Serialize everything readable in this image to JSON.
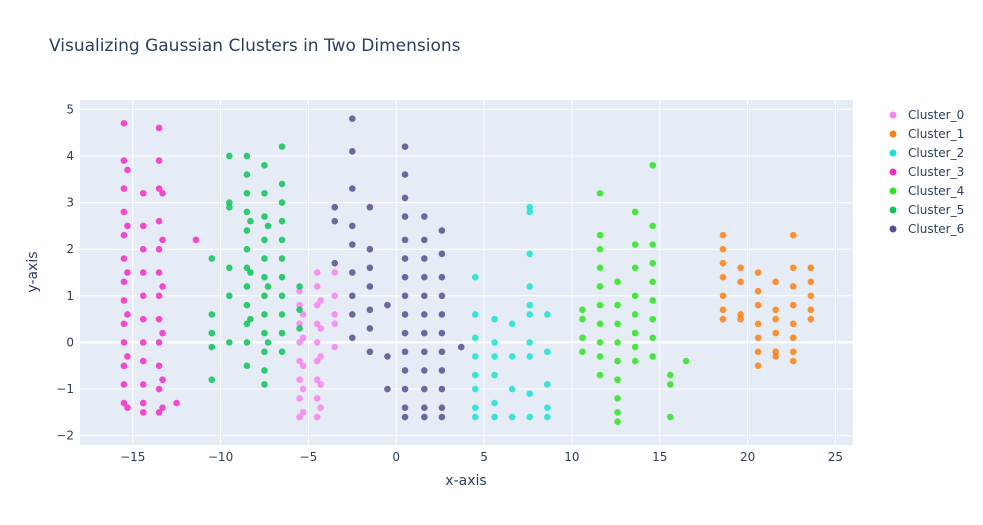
{
  "chart_data": {
    "type": "scatter",
    "title": "Visualizing Gaussian Clusters in Two Dimensions",
    "xlabel": "x-axis",
    "ylabel": "y-axis",
    "xlim": [
      -18,
      26
    ],
    "ylim": [
      -2.2,
      5.2
    ],
    "xticks": [
      -15,
      -10,
      -5,
      0,
      5,
      10,
      15,
      20,
      25
    ],
    "yticks": [
      -2,
      -1,
      0,
      1,
      2,
      3,
      4,
      5
    ],
    "grid": true,
    "legend_position": "right",
    "colors": {
      "plot_bg": "#e5ecf6",
      "grid": "#ffffff",
      "text": "#2a3f5f"
    },
    "series": [
      {
        "name": "Cluster_0",
        "color": "#f785ef",
        "points": [
          [
            -5.5,
            -1.6
          ],
          [
            -5.5,
            -1.2
          ],
          [
            -5.5,
            -0.8
          ],
          [
            -5.5,
            -0.4
          ],
          [
            -5.5,
            0.0
          ],
          [
            -5.5,
            0.4
          ],
          [
            -5.5,
            0.8
          ],
          [
            -5.5,
            1.1
          ],
          [
            -5.3,
            -1.5
          ],
          [
            -5.3,
            -1.0
          ],
          [
            -5.3,
            -0.5
          ],
          [
            -5.3,
            0.1
          ],
          [
            -5.3,
            0.6
          ],
          [
            -4.5,
            -1.6
          ],
          [
            -4.5,
            -1.2
          ],
          [
            -4.5,
            -0.8
          ],
          [
            -4.5,
            -0.4
          ],
          [
            -4.5,
            0.0
          ],
          [
            -4.5,
            0.4
          ],
          [
            -4.5,
            0.8
          ],
          [
            -4.5,
            1.2
          ],
          [
            -4.5,
            1.5
          ],
          [
            -4.3,
            -1.4
          ],
          [
            -4.3,
            -0.9
          ],
          [
            -4.3,
            -0.3
          ],
          [
            -4.3,
            0.3
          ],
          [
            -4.3,
            0.9
          ],
          [
            -3.5,
            1.5
          ],
          [
            -3.5,
            1.0
          ],
          [
            -3.5,
            0.6
          ],
          [
            -3.5,
            0.4
          ],
          [
            -3.5,
            -0.1
          ]
        ]
      },
      {
        "name": "Cluster_1",
        "color": "#ff7f0e",
        "points": [
          [
            18.6,
            2.3
          ],
          [
            18.6,
            2.0
          ],
          [
            18.6,
            1.7
          ],
          [
            18.6,
            1.4
          ],
          [
            18.6,
            1.0
          ],
          [
            18.6,
            0.7
          ],
          [
            18.6,
            0.5
          ],
          [
            19.6,
            1.6
          ],
          [
            19.6,
            1.3
          ],
          [
            19.6,
            0.6
          ],
          [
            19.6,
            0.5
          ],
          [
            20.6,
            1.5
          ],
          [
            20.6,
            1.1
          ],
          [
            20.6,
            0.8
          ],
          [
            20.6,
            0.4
          ],
          [
            20.6,
            0.1
          ],
          [
            20.6,
            -0.2
          ],
          [
            20.6,
            -0.5
          ],
          [
            21.6,
            1.3
          ],
          [
            21.6,
            0.7
          ],
          [
            21.6,
            0.5
          ],
          [
            21.6,
            0.2
          ],
          [
            21.6,
            -0.2
          ],
          [
            21.6,
            -0.3
          ],
          [
            22.6,
            2.3
          ],
          [
            22.6,
            1.6
          ],
          [
            22.6,
            1.2
          ],
          [
            22.6,
            0.8
          ],
          [
            22.6,
            0.4
          ],
          [
            22.6,
            0.1
          ],
          [
            22.6,
            -0.2
          ],
          [
            22.6,
            -0.4
          ],
          [
            23.6,
            1.6
          ],
          [
            23.6,
            1.3
          ],
          [
            23.6,
            1.0
          ],
          [
            23.6,
            0.7
          ],
          [
            23.6,
            0.5
          ]
        ]
      },
      {
        "name": "Cluster_2",
        "color": "#1be2d0",
        "points": [
          [
            4.5,
            1.4
          ],
          [
            4.5,
            0.6
          ],
          [
            4.5,
            0.1
          ],
          [
            4.5,
            -0.3
          ],
          [
            4.5,
            -0.7
          ],
          [
            4.5,
            -1.0
          ],
          [
            4.5,
            -1.4
          ],
          [
            4.5,
            -1.6
          ],
          [
            5.6,
            0.5
          ],
          [
            5.6,
            0.0
          ],
          [
            5.6,
            -0.3
          ],
          [
            5.6,
            -0.7
          ],
          [
            5.6,
            -1.3
          ],
          [
            5.6,
            -1.6
          ],
          [
            6.6,
            0.4
          ],
          [
            6.6,
            -0.3
          ],
          [
            6.6,
            -1.0
          ],
          [
            6.6,
            -1.6
          ],
          [
            7.6,
            2.9
          ],
          [
            7.6,
            2.8
          ],
          [
            7.6,
            1.9
          ],
          [
            7.6,
            1.2
          ],
          [
            7.6,
            0.8
          ],
          [
            7.6,
            0.6
          ],
          [
            7.6,
            0.0
          ],
          [
            7.6,
            -0.3
          ],
          [
            7.6,
            -1.1
          ],
          [
            7.6,
            -1.6
          ],
          [
            8.6,
            0.6
          ],
          [
            8.6,
            -0.2
          ],
          [
            8.6,
            -0.9
          ],
          [
            8.6,
            -1.4
          ],
          [
            8.6,
            -1.6
          ]
        ]
      },
      {
        "name": "Cluster_3",
        "color": "#f32bc7",
        "points": [
          [
            -15.5,
            4.7
          ],
          [
            -15.5,
            3.9
          ],
          [
            -15.5,
            3.3
          ],
          [
            -15.5,
            2.8
          ],
          [
            -15.5,
            2.3
          ],
          [
            -15.5,
            1.8
          ],
          [
            -15.5,
            1.3
          ],
          [
            -15.5,
            0.9
          ],
          [
            -15.5,
            0.4
          ],
          [
            -15.5,
            0.0
          ],
          [
            -15.5,
            -0.5
          ],
          [
            -15.5,
            -0.9
          ],
          [
            -15.5,
            -1.3
          ],
          [
            -15.3,
            3.7
          ],
          [
            -15.3,
            2.5
          ],
          [
            -15.3,
            1.5
          ],
          [
            -15.3,
            0.6
          ],
          [
            -15.3,
            -0.3
          ],
          [
            -15.3,
            -1.4
          ],
          [
            -14.4,
            3.2
          ],
          [
            -14.4,
            2.5
          ],
          [
            -14.4,
            2.0
          ],
          [
            -14.4,
            1.5
          ],
          [
            -14.4,
            1.0
          ],
          [
            -14.4,
            0.5
          ],
          [
            -14.4,
            0.0
          ],
          [
            -14.4,
            -0.4
          ],
          [
            -14.4,
            -0.9
          ],
          [
            -14.4,
            -1.3
          ],
          [
            -14.4,
            -1.5
          ],
          [
            -13.5,
            4.6
          ],
          [
            -13.5,
            3.9
          ],
          [
            -13.5,
            3.3
          ],
          [
            -13.5,
            2.6
          ],
          [
            -13.5,
            2.0
          ],
          [
            -13.5,
            1.5
          ],
          [
            -13.5,
            1.0
          ],
          [
            -13.5,
            0.5
          ],
          [
            -13.5,
            0.0
          ],
          [
            -13.5,
            -0.5
          ],
          [
            -13.5,
            -1.0
          ],
          [
            -13.5,
            -1.5
          ],
          [
            -13.3,
            3.2
          ],
          [
            -13.3,
            2.2
          ],
          [
            -13.3,
            1.2
          ],
          [
            -13.3,
            0.2
          ],
          [
            -13.3,
            -0.8
          ],
          [
            -13.3,
            -1.4
          ],
          [
            -12.5,
            -1.3
          ],
          [
            -11.4,
            2.2
          ]
        ]
      },
      {
        "name": "Cluster_4",
        "color": "#2ee420",
        "points": [
          [
            10.6,
            0.7
          ],
          [
            10.6,
            0.5
          ],
          [
            10.6,
            0.1
          ],
          [
            10.6,
            -0.2
          ],
          [
            11.6,
            3.2
          ],
          [
            11.6,
            2.3
          ],
          [
            11.6,
            2.0
          ],
          [
            11.6,
            1.6
          ],
          [
            11.6,
            1.2
          ],
          [
            11.6,
            0.8
          ],
          [
            11.6,
            0.4
          ],
          [
            11.6,
            0.0
          ],
          [
            11.6,
            -0.3
          ],
          [
            11.6,
            -0.7
          ],
          [
            12.6,
            1.3
          ],
          [
            12.6,
            0.8
          ],
          [
            12.6,
            0.4
          ],
          [
            12.6,
            0.0
          ],
          [
            12.6,
            -0.4
          ],
          [
            12.6,
            -0.8
          ],
          [
            12.6,
            -1.2
          ],
          [
            12.6,
            -1.5
          ],
          [
            12.6,
            -1.7
          ],
          [
            13.6,
            2.8
          ],
          [
            13.6,
            2.1
          ],
          [
            13.6,
            1.6
          ],
          [
            13.6,
            1.0
          ],
          [
            13.6,
            0.6
          ],
          [
            13.6,
            0.2
          ],
          [
            13.6,
            -0.1
          ],
          [
            13.6,
            -0.4
          ],
          [
            14.6,
            3.8
          ],
          [
            14.6,
            2.5
          ],
          [
            14.6,
            2.1
          ],
          [
            14.6,
            1.7
          ],
          [
            14.6,
            1.3
          ],
          [
            14.6,
            0.9
          ],
          [
            14.6,
            0.5
          ],
          [
            14.6,
            0.1
          ],
          [
            14.6,
            -0.3
          ],
          [
            15.6,
            -0.7
          ],
          [
            15.6,
            -0.9
          ],
          [
            15.6,
            -1.6
          ],
          [
            16.5,
            -0.4
          ]
        ]
      },
      {
        "name": "Cluster_5",
        "color": "#10c35a",
        "points": [
          [
            -10.5,
            1.8
          ],
          [
            -10.5,
            0.6
          ],
          [
            -10.5,
            0.2
          ],
          [
            -10.5,
            -0.1
          ],
          [
            -10.5,
            -0.8
          ],
          [
            -9.5,
            4.0
          ],
          [
            -9.5,
            3.0
          ],
          [
            -9.5,
            2.9
          ],
          [
            -9.5,
            1.6
          ],
          [
            -9.5,
            1.0
          ],
          [
            -9.5,
            0.0
          ],
          [
            -8.5,
            4.0
          ],
          [
            -8.5,
            3.6
          ],
          [
            -8.5,
            3.2
          ],
          [
            -8.5,
            2.8
          ],
          [
            -8.5,
            2.4
          ],
          [
            -8.5,
            2.0
          ],
          [
            -8.5,
            1.6
          ],
          [
            -8.5,
            1.2
          ],
          [
            -8.5,
            0.8
          ],
          [
            -8.5,
            0.4
          ],
          [
            -8.5,
            0.0
          ],
          [
            -8.5,
            -0.5
          ],
          [
            -8.3,
            2.6
          ],
          [
            -8.3,
            1.5
          ],
          [
            -8.3,
            0.5
          ],
          [
            -7.5,
            3.8
          ],
          [
            -7.5,
            3.2
          ],
          [
            -7.5,
            2.7
          ],
          [
            -7.5,
            2.2
          ],
          [
            -7.5,
            1.8
          ],
          [
            -7.5,
            1.4
          ],
          [
            -7.5,
            1.0
          ],
          [
            -7.5,
            0.6
          ],
          [
            -7.5,
            0.2
          ],
          [
            -7.5,
            -0.2
          ],
          [
            -7.5,
            -0.6
          ],
          [
            -7.5,
            -0.9
          ],
          [
            -7.3,
            2.5
          ],
          [
            -7.3,
            1.2
          ],
          [
            -7.3,
            0.0
          ],
          [
            -6.5,
            4.2
          ],
          [
            -6.5,
            3.4
          ],
          [
            -6.5,
            3.0
          ],
          [
            -6.5,
            2.6
          ],
          [
            -6.5,
            2.2
          ],
          [
            -6.5,
            1.8
          ],
          [
            -6.5,
            1.4
          ],
          [
            -6.5,
            1.0
          ],
          [
            -6.5,
            0.6
          ],
          [
            -6.5,
            0.2
          ],
          [
            -6.5,
            -0.2
          ],
          [
            -5.5,
            1.2
          ],
          [
            -5.5,
            0.7
          ],
          [
            -5.5,
            0.3
          ]
        ]
      },
      {
        "name": "Cluster_6",
        "color": "#5a4e8f",
        "points": [
          [
            -3.5,
            2.9
          ],
          [
            -3.5,
            2.6
          ],
          [
            -3.5,
            1.7
          ],
          [
            -2.5,
            4.8
          ],
          [
            -2.5,
            4.1
          ],
          [
            -2.5,
            3.3
          ],
          [
            -2.5,
            2.5
          ],
          [
            -2.5,
            2.1
          ],
          [
            -2.5,
            1.5
          ],
          [
            -2.5,
            1.0
          ],
          [
            -2.5,
            0.6
          ],
          [
            -2.5,
            0.1
          ],
          [
            -1.5,
            2.9
          ],
          [
            -1.5,
            2.0
          ],
          [
            -1.5,
            1.6
          ],
          [
            -1.5,
            1.2
          ],
          [
            -1.5,
            0.7
          ],
          [
            -1.5,
            0.3
          ],
          [
            -1.5,
            -0.2
          ],
          [
            -0.5,
            0.8
          ],
          [
            -0.5,
            -0.3
          ],
          [
            -0.5,
            -1.0
          ],
          [
            0.5,
            4.2
          ],
          [
            0.5,
            3.6
          ],
          [
            0.5,
            3.1
          ],
          [
            0.5,
            2.7
          ],
          [
            0.5,
            2.2
          ],
          [
            0.5,
            1.8
          ],
          [
            0.5,
            1.4
          ],
          [
            0.5,
            1.0
          ],
          [
            0.5,
            0.6
          ],
          [
            0.5,
            0.2
          ],
          [
            0.5,
            -0.2
          ],
          [
            0.5,
            -0.6
          ],
          [
            0.5,
            -1.0
          ],
          [
            0.5,
            -1.4
          ],
          [
            0.5,
            -1.6
          ],
          [
            1.6,
            2.7
          ],
          [
            1.6,
            2.2
          ],
          [
            1.6,
            1.8
          ],
          [
            1.6,
            1.4
          ],
          [
            1.6,
            1.0
          ],
          [
            1.6,
            0.6
          ],
          [
            1.6,
            0.2
          ],
          [
            1.6,
            -0.2
          ],
          [
            1.6,
            -0.6
          ],
          [
            1.6,
            -1.0
          ],
          [
            1.6,
            -1.4
          ],
          [
            1.6,
            -1.6
          ],
          [
            2.6,
            2.4
          ],
          [
            2.6,
            1.9
          ],
          [
            2.6,
            1.4
          ],
          [
            2.6,
            1.0
          ],
          [
            2.6,
            0.6
          ],
          [
            2.6,
            0.2
          ],
          [
            2.6,
            -0.2
          ],
          [
            2.6,
            -0.6
          ],
          [
            2.6,
            -1.0
          ],
          [
            2.6,
            -1.4
          ],
          [
            2.6,
            -1.6
          ],
          [
            3.7,
            -0.1
          ]
        ]
      }
    ]
  }
}
